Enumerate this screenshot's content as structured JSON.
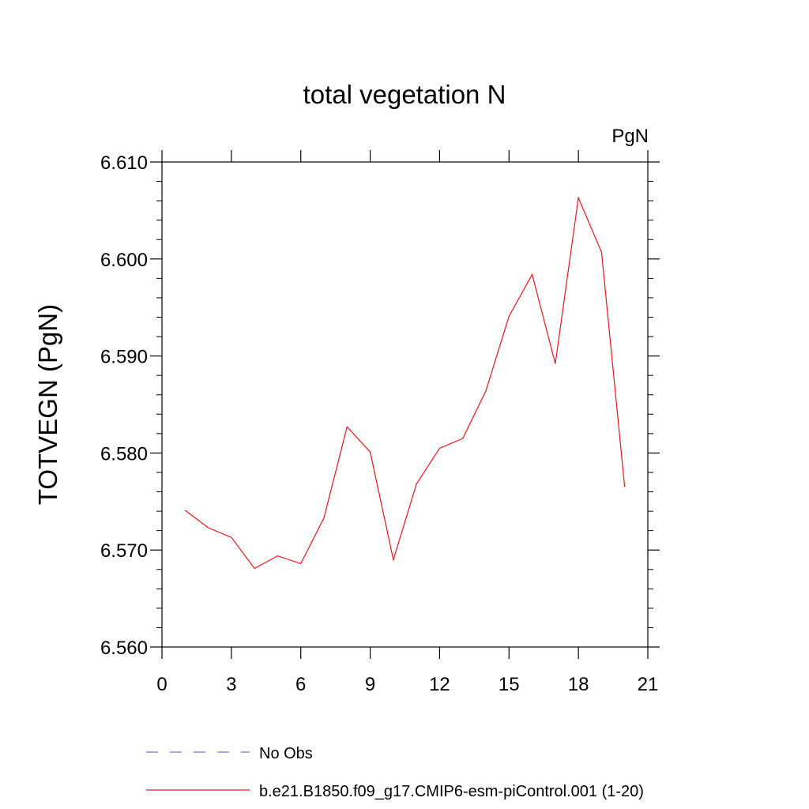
{
  "chart_data": {
    "type": "line",
    "title": "total vegetation N",
    "units": "PgN",
    "ylabel": "TOTVEGN  (PgN)",
    "xlabel": "",
    "xlim": [
      0,
      21
    ],
    "ylim": [
      6.56,
      6.61
    ],
    "xticks": [
      0,
      3,
      6,
      9,
      12,
      15,
      18,
      21
    ],
    "yticks": [
      "6.560",
      "6.570",
      "6.580",
      "6.590",
      "6.600",
      "6.610"
    ],
    "grid": false,
    "legend_position": "bottom",
    "series": [
      {
        "name": "b.e21.B1850.f09_g17.CMIP6-esm-piControl.001 (1-20)",
        "color": "#e8141c",
        "dash": "solid",
        "x": [
          1,
          2,
          3,
          4,
          5,
          6,
          7,
          8,
          9,
          10,
          11,
          12,
          13,
          14,
          15,
          16,
          17,
          18,
          19,
          20
        ],
        "y": [
          6.5741,
          6.5723,
          6.5713,
          6.5681,
          6.5694,
          6.5686,
          6.5733,
          6.5827,
          6.5801,
          6.569,
          6.5768,
          6.5805,
          6.5815,
          6.5864,
          6.5941,
          6.5984,
          6.5892,
          6.6063,
          6.6007,
          6.5765
        ]
      },
      {
        "name": "No Obs",
        "color": "#7b74d6",
        "dash": "dashed",
        "x": [],
        "y": []
      }
    ]
  }
}
